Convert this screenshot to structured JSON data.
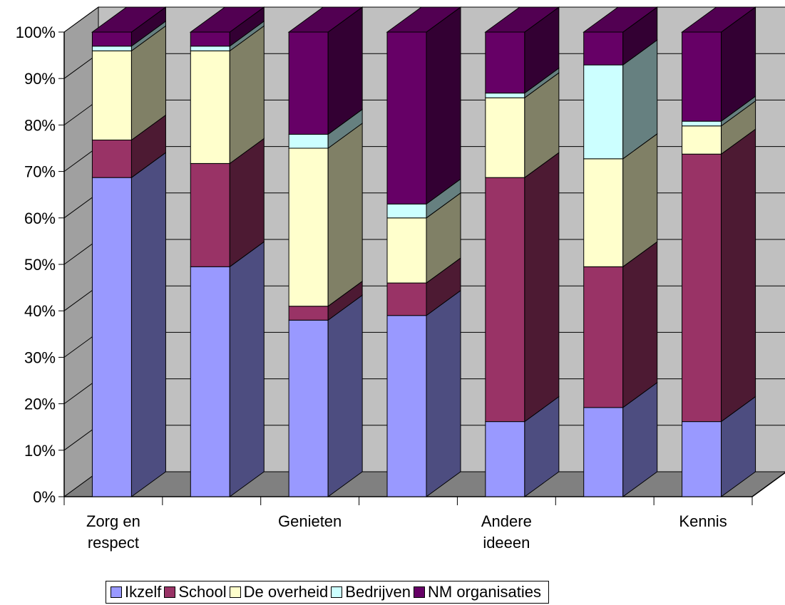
{
  "chart_data": {
    "type": "bar",
    "stacked": "percent",
    "three_d": true,
    "categories": [
      "Zorg en respect",
      "",
      "Genieten",
      "",
      "Andere ideeen",
      "",
      "Kennis"
    ],
    "series": [
      {
        "name": "Ikzelf",
        "color": "#9999FF",
        "values": [
          68,
          49,
          38,
          39,
          16,
          19,
          16
        ]
      },
      {
        "name": "School",
        "color": "#993366",
        "values": [
          8,
          22,
          3,
          7,
          52,
          30,
          57
        ]
      },
      {
        "name": "De overheid",
        "color": "#FFFFCC",
        "values": [
          19,
          24,
          34,
          14,
          17,
          23,
          6
        ]
      },
      {
        "name": "Bedrijven",
        "color": "#CCFFFF",
        "values": [
          1,
          1,
          3,
          3,
          1,
          20,
          1
        ]
      },
      {
        "name": "NM organisaties",
        "color": "#660066",
        "values": [
          3,
          3,
          22,
          37,
          13,
          7,
          19
        ]
      }
    ],
    "yticks": [
      "0%",
      "10%",
      "20%",
      "30%",
      "40%",
      "50%",
      "60%",
      "70%",
      "80%",
      "90%",
      "100%"
    ],
    "ylim": [
      0,
      100
    ],
    "grid": true,
    "legend": "bottom"
  }
}
